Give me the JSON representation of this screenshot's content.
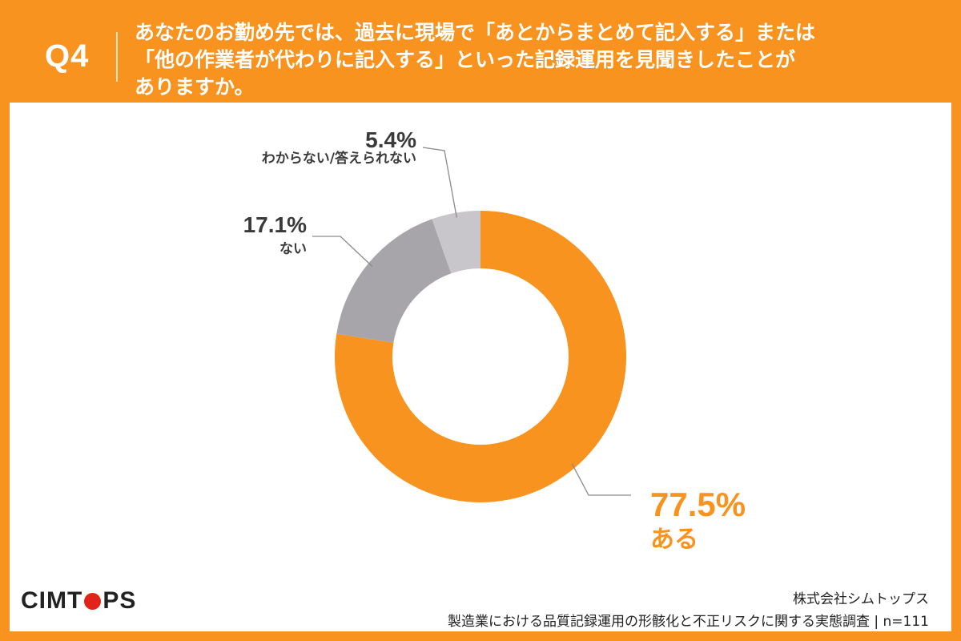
{
  "header": {
    "question_number": "Q4",
    "question_lines": [
      "あなたのお勤め先では、過去に現場で「あとからまとめて記入する」または",
      "「他の作業者が代わりに記入する」といった記録運用を見聞きしたことが",
      "ありますか。"
    ]
  },
  "chart_data": {
    "type": "pie",
    "variant": "donut",
    "title": "",
    "slices": [
      {
        "label": "ある",
        "value": 77.5,
        "value_label": "77.5%",
        "color": "#F7931E"
      },
      {
        "label": "ない",
        "value": 17.1,
        "value_label": "17.1%",
        "color": "#A7A5AA"
      },
      {
        "label": "わからない/答えられない",
        "value": 5.4,
        "value_label": "5.4%",
        "color": "#C8C6CA"
      }
    ],
    "start": "top",
    "direction": "clockwise"
  },
  "footer": {
    "logo": {
      "before": "CIMT",
      "after": "PS",
      "dot_color": "#E2231A"
    },
    "company": "株式会社シムトップス",
    "survey": "製造業における品質記録運用の形骸化と不正リスクに関する実態調査 | n=111"
  },
  "colors": {
    "accent": "#F7931E",
    "gray_dark": "#A7A5AA",
    "gray_light": "#C8C6CA",
    "text_dark": "#3A3A3A"
  }
}
